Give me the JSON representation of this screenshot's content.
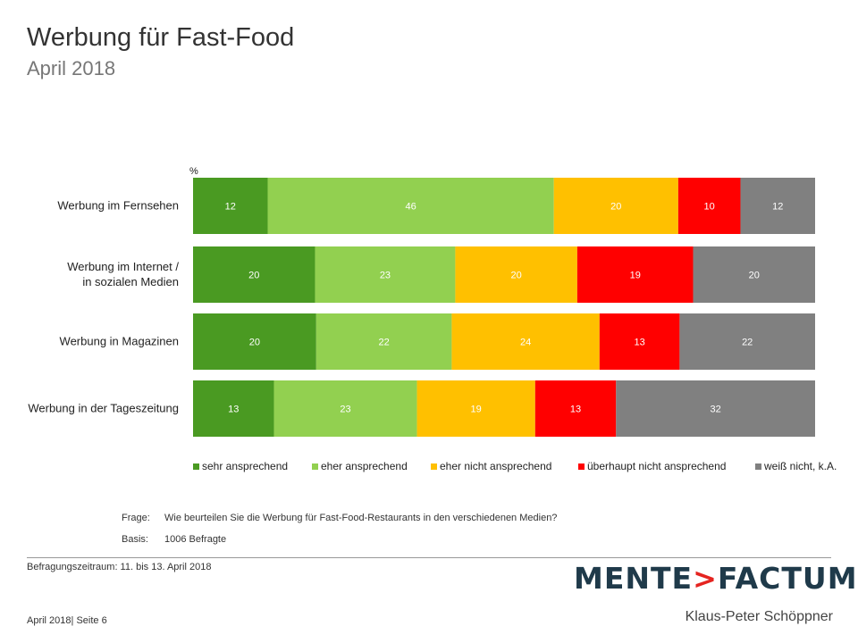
{
  "header": {
    "title": "Werbung für Fast-Food",
    "subtitle": "April 2018"
  },
  "chart_data": {
    "type": "bar",
    "orientation": "horizontal",
    "stacked": true,
    "unit_label": "%",
    "categories": [
      "Werbung im Fernsehen",
      "Werbung im Internet / in sozialen Medien",
      "Werbung in Magazinen",
      "Werbung in der Tageszeitung"
    ],
    "category_lines": [
      [
        "Werbung im Fernsehen"
      ],
      [
        "Werbung im Internet /",
        "in sozialen Medien"
      ],
      [
        "Werbung in Magazinen"
      ],
      [
        "Werbung in der Tageszeitung"
      ]
    ],
    "series": [
      {
        "name": "sehr ansprechend",
        "color": "#4a9a22",
        "values": [
          12,
          20,
          20,
          13
        ]
      },
      {
        "name": "eher ansprechend",
        "color": "#92d050",
        "values": [
          46,
          23,
          22,
          23
        ]
      },
      {
        "name": "eher nicht ansprechend",
        "color": "#ffc000",
        "values": [
          20,
          20,
          24,
          19
        ]
      },
      {
        "name": "überhaupt nicht ansprechend",
        "color": "#ff0000",
        "values": [
          10,
          19,
          13,
          13
        ]
      },
      {
        "name": "weiß nicht, k.A.",
        "color": "#808080",
        "values": [
          12,
          20,
          22,
          32
        ]
      }
    ],
    "legend_position": "bottom",
    "grid": false
  },
  "notes": {
    "frage_label": "Frage:",
    "frage_text": "Wie beurteilen Sie die Werbung für Fast-Food-Restaurants in den verschiedenen Medien?",
    "basis_label": "Basis:",
    "basis_text": "1006 Befragte",
    "period": "Befragungszeitraum: 11. bis 13. April 2018"
  },
  "branding": {
    "logo_left": "MENTE",
    "logo_arrow": ">",
    "logo_right": "FACTUM",
    "author": "Klaus-Peter Schöppner"
  },
  "footer": {
    "text": "April 2018|  Seite 6"
  }
}
